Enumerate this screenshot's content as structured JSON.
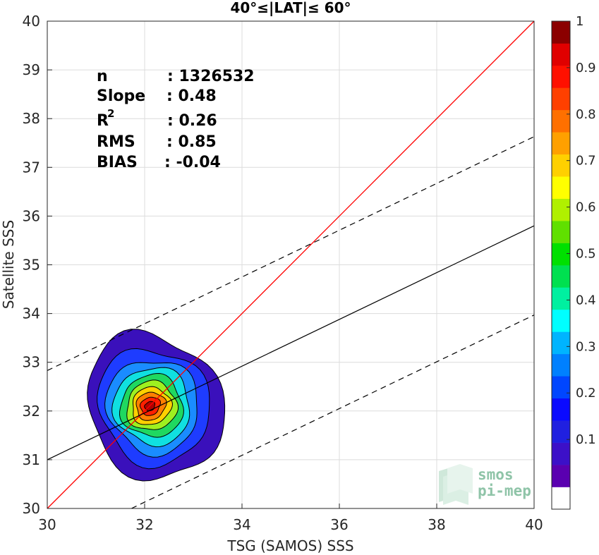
{
  "chart_data": {
    "type": "scatter",
    "title": "40°≤|LAT|≤ 60°",
    "xlabel": "TSG (SAMOS) SSS",
    "ylabel": "Satellite SSS",
    "xlim": [
      30,
      40
    ],
    "ylim": [
      30,
      40
    ],
    "xticks": [
      "30",
      "32",
      "34",
      "36",
      "38",
      "40"
    ],
    "yticks": [
      "30",
      "31",
      "32",
      "33",
      "34",
      "35",
      "36",
      "37",
      "38",
      "39",
      "40"
    ],
    "grid": true,
    "stats": [
      {
        "name": "n",
        "value": ": 1326532"
      },
      {
        "name": "Slope",
        "value": ": 0.48"
      },
      {
        "name": "R",
        "sup": "2",
        "value": ": 0.26"
      },
      {
        "name": "RMS",
        "value": ": 0.85"
      },
      {
        "name": "BIAS",
        "value": ": -0.04"
      }
    ],
    "lines": {
      "identity": {
        "color": "#ff0000",
        "points": [
          [
            30,
            30
          ],
          [
            40,
            40
          ]
        ]
      },
      "fit": {
        "color": "#000000",
        "style": "solid",
        "points": [
          [
            30,
            31.0
          ],
          [
            40,
            35.8
          ]
        ]
      },
      "fit_upper": {
        "color": "#000000",
        "style": "dashed",
        "points": [
          [
            30,
            32.83
          ],
          [
            40,
            37.63
          ]
        ]
      },
      "fit_lower": {
        "color": "#000000",
        "style": "dashed",
        "points": [
          [
            30,
            29.17
          ],
          [
            40,
            33.97
          ]
        ]
      }
    },
    "density_contours": {
      "center": [
        32.1,
        32.1
      ],
      "levels": [
        {
          "level": 0.05,
          "color": "#3a10bb",
          "rx": 1.35,
          "ry": 1.55
        },
        {
          "level": 0.15,
          "color": "#1e3cff",
          "rx": 1.12,
          "ry": 1.22
        },
        {
          "level": 0.25,
          "color": "#1a8cff",
          "rx": 0.93,
          "ry": 0.98
        },
        {
          "level": 0.35,
          "color": "#10e0e0",
          "rx": 0.78,
          "ry": 0.8
        },
        {
          "level": 0.45,
          "color": "#1fd860",
          "rx": 0.64,
          "ry": 0.64
        },
        {
          "level": 0.55,
          "color": "#9ef020",
          "rx": 0.52,
          "ry": 0.5
        },
        {
          "level": 0.65,
          "color": "#ffd000",
          "rx": 0.41,
          "ry": 0.38
        },
        {
          "level": 0.75,
          "color": "#ff8000",
          "rx": 0.31,
          "ry": 0.28
        },
        {
          "level": 0.85,
          "color": "#ff2000",
          "rx": 0.21,
          "ry": 0.18
        },
        {
          "level": 0.95,
          "color": "#b00000",
          "rx": 0.11,
          "ry": 0.09
        }
      ]
    },
    "colorbar": {
      "ticks": [
        "0.1",
        "0.2",
        "0.3",
        "0.4",
        "0.5",
        "0.6",
        "0.7",
        "0.8",
        "0.9",
        "1"
      ],
      "colors": [
        "#ffffff",
        "#5a00b0",
        "#3c10c8",
        "#2020e0",
        "#0a0aff",
        "#0046ff",
        "#0080ff",
        "#00b4ff",
        "#00ffff",
        "#00f0a0",
        "#00e050",
        "#00e000",
        "#60e000",
        "#b0f000",
        "#ffff00",
        "#ffd000",
        "#ffa000",
        "#ff7000",
        "#ff4000",
        "#ff1000",
        "#e00000",
        "#8b0000"
      ]
    }
  },
  "logo": {
    "line1": "smos",
    "line2": "pi-mep"
  }
}
